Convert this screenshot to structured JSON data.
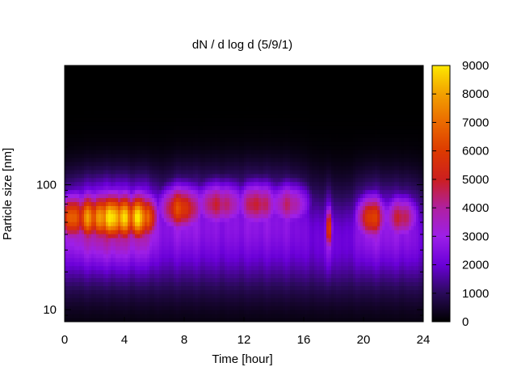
{
  "chart_data": {
    "type": "heatmap",
    "title": "dN / d log d (5/9/1)",
    "xlabel": "Time [hour]",
    "ylabel": "Particle size [nm]",
    "xlim": [
      0,
      24
    ],
    "ylim": [
      8,
      900
    ],
    "y_scale": "log",
    "x_ticks": [
      0,
      4,
      8,
      12,
      16,
      20,
      24
    ],
    "x_tick_labels": [
      "0",
      "4",
      "8",
      "12",
      "16",
      "20",
      "24"
    ],
    "y_ticks": [
      10,
      100
    ],
    "y_tick_labels": [
      "10",
      "100"
    ],
    "colorbar": {
      "range": [
        0,
        9000
      ],
      "ticks": [
        0,
        1000,
        2000,
        3000,
        4000,
        5000,
        6000,
        7000,
        8000,
        9000
      ],
      "tick_labels": [
        "0",
        "1000",
        "2000",
        "3000",
        "4000",
        "5000",
        "6000",
        "7000",
        "8000",
        "9000"
      ],
      "colormap": "black-blue-purple-red-orange-yellow",
      "colors": [
        "#000000",
        "#2a0a5a",
        "#6a00d8",
        "#9d1fe8",
        "#b020a0",
        "#cc1f1f",
        "#dd3a00",
        "#ea6a00",
        "#f2a000",
        "#fde800"
      ]
    },
    "mode_peaks": [
      {
        "time": 0.5,
        "diameter_nm": 55,
        "value": 5200,
        "width_h": 0.9
      },
      {
        "time": 1.5,
        "diameter_nm": 55,
        "value": 5600,
        "width_h": 0.8
      },
      {
        "time": 2.3,
        "diameter_nm": 55,
        "value": 6000,
        "width_h": 0.7
      },
      {
        "time": 3.1,
        "diameter_nm": 55,
        "value": 7200,
        "width_h": 0.7
      },
      {
        "time": 3.9,
        "diameter_nm": 55,
        "value": 6500,
        "width_h": 0.7
      },
      {
        "time": 4.8,
        "diameter_nm": 55,
        "value": 6800,
        "width_h": 0.8
      },
      {
        "time": 5.6,
        "diameter_nm": 55,
        "value": 5500,
        "width_h": 0.6
      },
      {
        "time": 7.7,
        "diameter_nm": 65,
        "value": 4800,
        "width_h": 1.4
      },
      {
        "time": 10.2,
        "diameter_nm": 70,
        "value": 3700,
        "width_h": 1.8
      },
      {
        "time": 12.8,
        "diameter_nm": 70,
        "value": 3800,
        "width_h": 1.5
      },
      {
        "time": 15.0,
        "diameter_nm": 70,
        "value": 3400,
        "width_h": 1.5
      },
      {
        "time": 17.7,
        "diameter_nm": 45,
        "value": 5300,
        "width_h": 0.22
      },
      {
        "time": 20.5,
        "diameter_nm": 55,
        "value": 4900,
        "width_h": 1.0
      },
      {
        "time": 22.5,
        "diameter_nm": 55,
        "value": 3900,
        "width_h": 1.2
      }
    ],
    "background_level": {
      "peak_diameter_nm": 35,
      "value": 2000
    },
    "grid": false
  }
}
